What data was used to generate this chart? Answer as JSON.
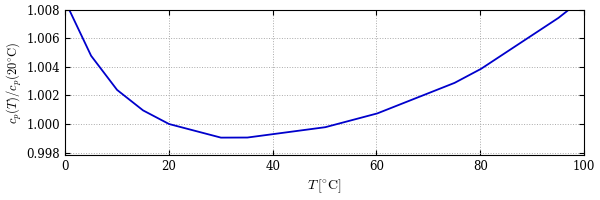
{
  "T_min": 0,
  "T_max": 100,
  "cp_ref_T": 20,
  "ylim": [
    0.9978,
    1.008
  ],
  "yticks": [
    0.998,
    1.0,
    1.002,
    1.004,
    1.006,
    1.008
  ],
  "xticks": [
    0,
    20,
    40,
    60,
    80,
    100
  ],
  "xlabel": "$T\\,[^{\\circ}\\mathrm{C}]$",
  "ylabel": "$c_p(T)/c_p(20^{\\circ}\\mathrm{C})$",
  "line_color": "#0000cc",
  "line_width": 1.3,
  "grid_color": "#aaaaaa",
  "grid_style": "dotted",
  "bg_color": "#ffffff",
  "figsize": [
    6.0,
    2.0
  ],
  "dpi": 100,
  "cp_data_T": [
    0,
    5,
    10,
    15,
    20,
    25,
    30,
    35,
    40,
    45,
    50,
    55,
    60,
    65,
    70,
    75,
    80,
    85,
    90,
    95,
    100
  ],
  "cp_data_cp": [
    4218,
    4202,
    4192,
    4186,
    4182,
    4180,
    4178,
    4178,
    4179,
    4180,
    4181,
    4183,
    4185,
    4188,
    4191,
    4194,
    4198,
    4203,
    4208,
    4213,
    4219
  ]
}
